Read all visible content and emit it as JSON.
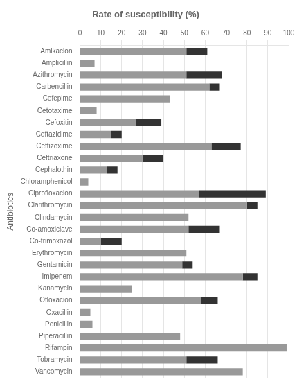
{
  "chart_data": {
    "type": "bar",
    "orientation": "horizontal",
    "stacked": true,
    "title": "Rate of susceptibility (%)",
    "ylabel": "Antibiotics",
    "categories": [
      "Amikacion",
      "Amplicillin",
      "Azithromycin",
      "Carbencillin",
      "Cefepime",
      "Cetotaxime",
      "Cefoxitin",
      "Ceftazidime",
      "Ceftizoxime",
      "Ceftriaxone",
      "Cephalothin",
      "Chloramphenicol",
      "Ciprofloxacion",
      "Clarithromycin",
      "Clindamycin",
      "Co-amoxiclave",
      "Co-trimoxazol",
      "Erythromycin",
      "Gentamicin",
      "Imipenem",
      "Kanamycin",
      "Ofloxacion",
      "Oxacillin",
      "Penicillin",
      "Piperacillin",
      "Rifampin",
      "Tobramycin",
      "Vancomycin"
    ],
    "series": [
      {
        "color": "#999999",
        "values": [
          51,
          7,
          51,
          62,
          43,
          8,
          27,
          15,
          63,
          30,
          13,
          4,
          57,
          80,
          52,
          52,
          10,
          51,
          49,
          78,
          25,
          58,
          5,
          6,
          48,
          99,
          51,
          78
        ]
      },
      {
        "color": "#333333",
        "values": [
          10,
          0,
          17,
          5,
          0,
          0,
          12,
          5,
          14,
          10,
          5,
          0,
          32,
          5,
          0,
          15,
          10,
          0,
          5,
          7,
          0,
          8,
          0,
          0,
          0,
          0,
          15,
          0
        ]
      }
    ],
    "xlim": [
      0,
      100
    ],
    "xticks": [
      0,
      10,
      20,
      30,
      40,
      50,
      60,
      70,
      80,
      90,
      100
    ],
    "grid": true
  }
}
